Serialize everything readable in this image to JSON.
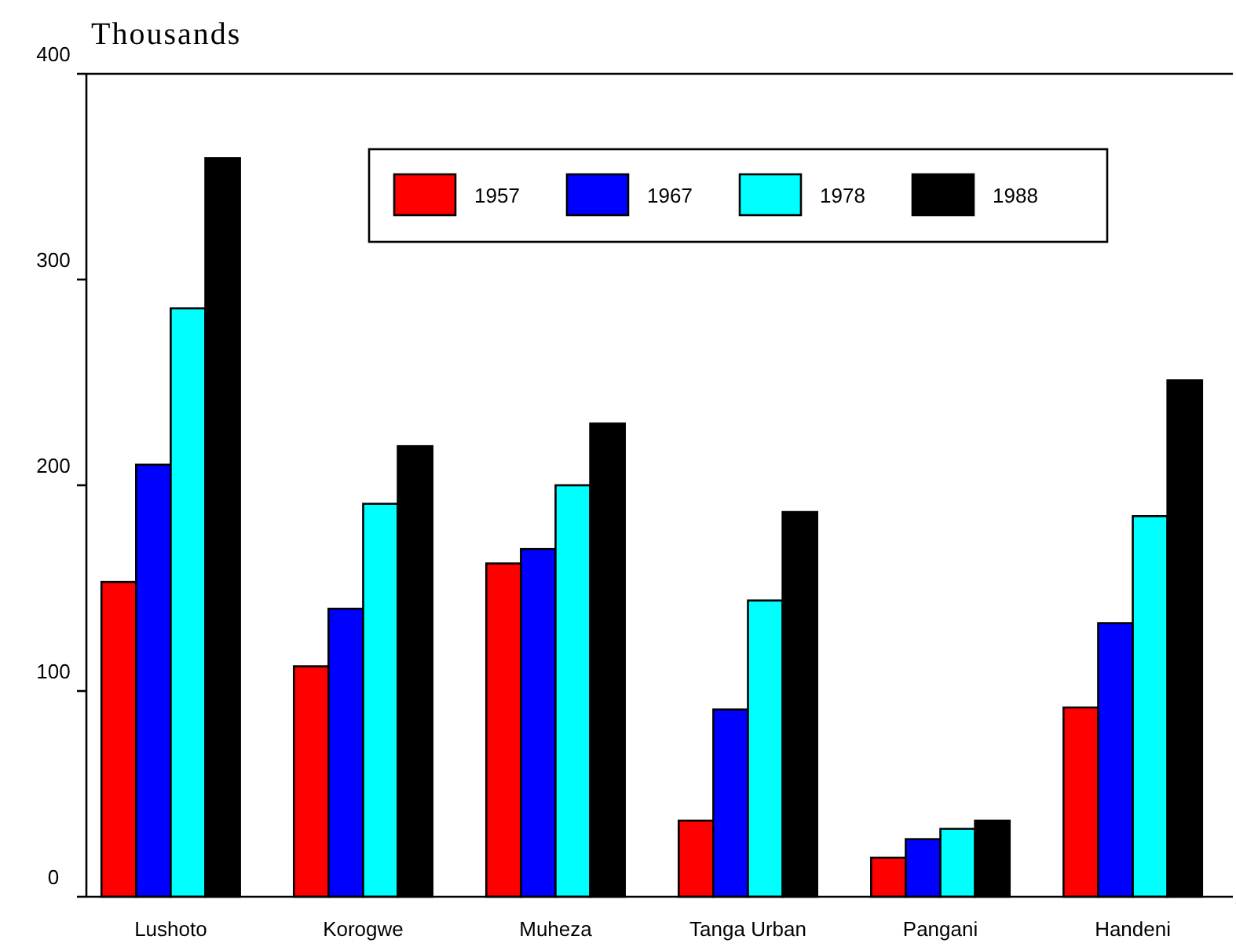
{
  "chart_data": {
    "type": "bar",
    "ylabel": "Thousands",
    "categories": [
      "Lushoto",
      "Korogwe",
      "Muheza",
      "Tanga Urban",
      "Pangani",
      "Handeni"
    ],
    "series": [
      {
        "name": "1957",
        "color": "#ff0000",
        "values": [
          153,
          112,
          162,
          37,
          19,
          92
        ]
      },
      {
        "name": "1967",
        "color": "#0000ff",
        "values": [
          210,
          140,
          169,
          91,
          28,
          133
        ]
      },
      {
        "name": "1978",
        "color": "#00ffff",
        "values": [
          286,
          191,
          200,
          144,
          33,
          185
        ]
      },
      {
        "name": "1988",
        "color": "#000000",
        "values": [
          359,
          219,
          230,
          187,
          37,
          251
        ]
      }
    ],
    "ylim": [
      0,
      400
    ],
    "yticks": [
      0,
      100,
      200,
      300,
      400
    ],
    "grid": false,
    "legend": "top right"
  }
}
